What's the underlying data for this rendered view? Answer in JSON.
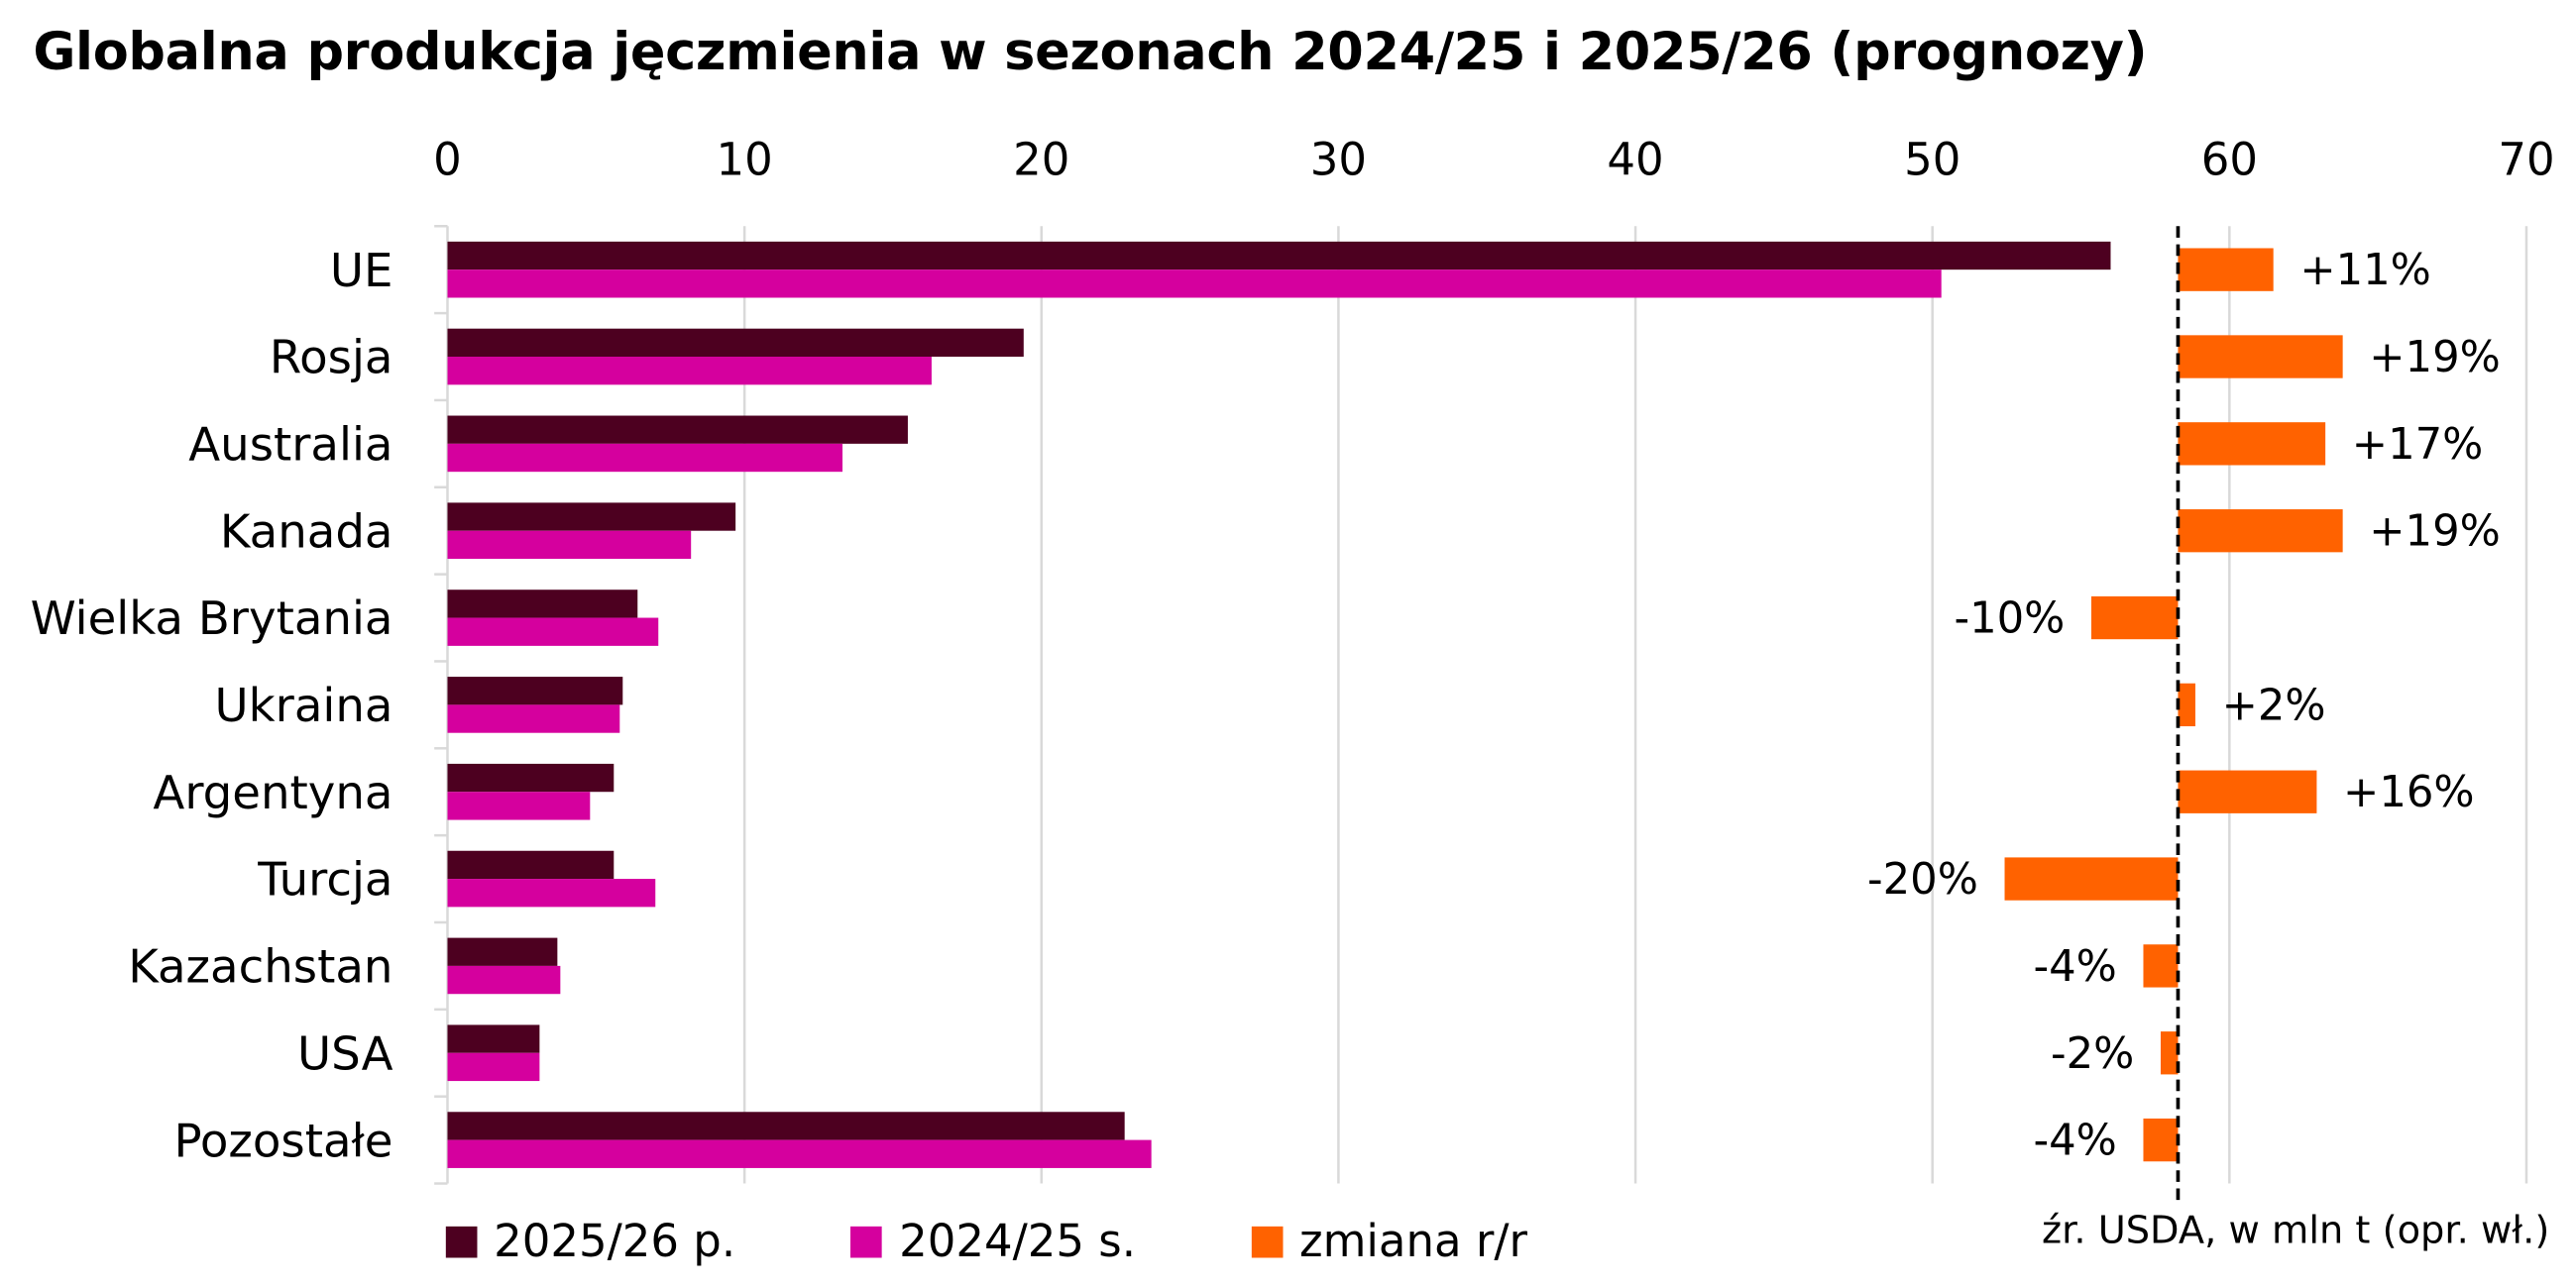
{
  "title": "Globalna produkcja jęczmienia w sezonach 2024/25 i 2025/26 (prognozy)",
  "source": "źr. USDA, w mln t (opr. wł.)",
  "colors": {
    "s2025": "#4D0020",
    "s2024": "#D5009E",
    "change": "#FF6200",
    "grid": "#d9d9d9",
    "text": "#000000"
  },
  "legend": [
    {
      "label": "2025/26 p.",
      "color": "#4D0020"
    },
    {
      "label": "2024/25 s.",
      "color": "#D5009E"
    },
    {
      "label": "zmiana r/r",
      "color": "#FF6200"
    }
  ],
  "chart_data": {
    "type": "bar",
    "orientation": "horizontal",
    "title": "Globalna produkcja jęczmienia w sezonach 2024/25 i 2025/26 (prognozy)",
    "xlim": [
      0,
      70
    ],
    "xticks": [
      0,
      10,
      20,
      30,
      40,
      50,
      60,
      70
    ],
    "x_axis_position": "top",
    "grid": true,
    "legend_position": "bottom-left",
    "categories": [
      "UE",
      "Rosja",
      "Australia",
      "Kanada",
      "Wielka Brytania",
      "Ukraina",
      "Argentyna",
      "Turcja",
      "Kazachstan",
      "USA",
      "Pozostałe"
    ],
    "series": [
      {
        "name": "2025/26 p.",
        "values": [
          56.0,
          19.4,
          15.5,
          9.7,
          6.4,
          5.9,
          5.6,
          5.6,
          3.7,
          3.1,
          22.8
        ]
      },
      {
        "name": "2024/25 s.",
        "values": [
          50.3,
          16.3,
          13.3,
          8.2,
          7.1,
          5.8,
          4.8,
          7.0,
          3.8,
          3.1,
          23.7
        ]
      }
    ],
    "change_series": {
      "name": "zmiana r/r",
      "values": [
        11,
        19,
        17,
        19,
        -10,
        2,
        16,
        -20,
        -4,
        -2,
        -4
      ],
      "labels": [
        "+11%",
        "+19%",
        "+17%",
        "+19%",
        "-10%",
        "+2%",
        "+16%",
        "-20%",
        "-4%",
        "-2%",
        "-4%"
      ],
      "baseline_marker": "dashed"
    }
  }
}
